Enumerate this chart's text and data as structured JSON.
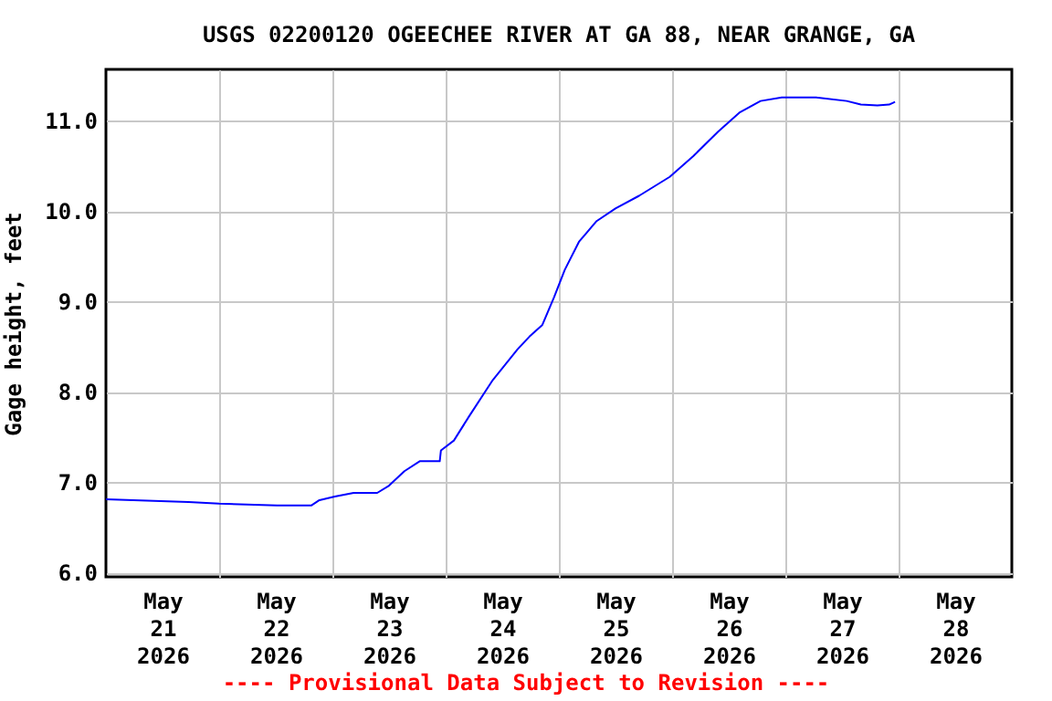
{
  "chart_data": {
    "type": "line",
    "title": "USGS 02200120 OGEECHEE RIVER AT GA 88, NEAR GRANGE, GA",
    "ylabel": "Gage height, feet",
    "annotations": [
      "---- Provisional Data Subject to Revision ----"
    ],
    "x": [
      "2026-05-21T00:00",
      "2026-05-21T17:30",
      "2026-05-22T00:00",
      "2026-05-22T12:15",
      "2026-05-22T19:30",
      "2026-05-22T21:15",
      "2026-05-23T00:30",
      "2026-05-23T04:30",
      "2026-05-23T09:30",
      "2026-05-23T12:00",
      "2026-05-23T15:15",
      "2026-05-23T18:30",
      "2026-05-23T22:45",
      "2026-05-23T23:00",
      "2026-05-24T01:45",
      "2026-05-24T05:00",
      "2026-05-24T10:00",
      "2026-05-24T15:15",
      "2026-05-24T17:45",
      "2026-05-24T20:30",
      "2026-05-24T23:00",
      "2026-05-25T01:15",
      "2026-05-25T04:15",
      "2026-05-25T08:00",
      "2026-05-25T12:00",
      "2026-05-25T17:00",
      "2026-05-25T23:30",
      "2026-05-26T04:30",
      "2026-05-26T09:45",
      "2026-05-26T14:15",
      "2026-05-26T18:45",
      "2026-05-26T23:15",
      "2026-05-27T06:30",
      "2026-05-27T13:00",
      "2026-05-27T16:00",
      "2026-05-27T19:30",
      "2026-05-27T22:00",
      "2026-05-27T23:15"
    ],
    "series": [
      {
        "color": "#0000ff",
        "values": [
          6.81,
          6.78,
          6.76,
          6.74,
          6.74,
          6.8,
          6.84,
          6.88,
          6.88,
          6.96,
          7.12,
          7.23,
          7.23,
          7.35,
          7.46,
          7.73,
          8.13,
          8.47,
          8.61,
          8.74,
          9.05,
          9.35,
          9.66,
          9.89,
          10.03,
          10.17,
          10.38,
          10.61,
          10.88,
          11.09,
          11.22,
          11.26,
          11.26,
          11.22,
          11.18,
          11.17,
          11.18,
          11.21
        ]
      }
    ],
    "xlim": [
      "2026-05-21T00:00",
      "2026-05-29T00:00"
    ],
    "xticks": [
      {
        "value": "2026-05-21T12:00",
        "label": "May\n21\n2026"
      },
      {
        "value": "2026-05-22T00:00",
        "label": null
      },
      {
        "value": "2026-05-22T12:00",
        "label": "May\n22\n2026"
      },
      {
        "value": "2026-05-23T00:00",
        "label": null
      },
      {
        "value": "2026-05-23T12:00",
        "label": "May\n23\n2026"
      },
      {
        "value": "2026-05-24T00:00",
        "label": null
      },
      {
        "value": "2026-05-24T12:00",
        "label": "May\n24\n2026"
      },
      {
        "value": "2026-05-25T00:00",
        "label": null
      },
      {
        "value": "2026-05-25T12:00",
        "label": "May\n25\n2026"
      },
      {
        "value": "2026-05-26T00:00",
        "label": null
      },
      {
        "value": "2026-05-26T12:00",
        "label": "May\n26\n2026"
      },
      {
        "value": "2026-05-27T00:00",
        "label": null
      },
      {
        "value": "2026-05-27T12:00",
        "label": "May\n27\n2026"
      },
      {
        "value": "2026-05-28T00:00",
        "label": null
      },
      {
        "value": "2026-05-28T12:00",
        "label": "May\n28\n2026"
      }
    ],
    "ylim": [
      5.95,
      11.57
    ],
    "yticks": [
      {
        "value": 6,
        "label": "6.0"
      },
      {
        "value": 7,
        "label": "7.0"
      },
      {
        "value": 8,
        "label": "8.0"
      },
      {
        "value": 9,
        "label": "9.0"
      },
      {
        "value": 10,
        "label": "10.0"
      },
      {
        "value": 11,
        "label": "11.0"
      }
    ],
    "grid": true
  }
}
